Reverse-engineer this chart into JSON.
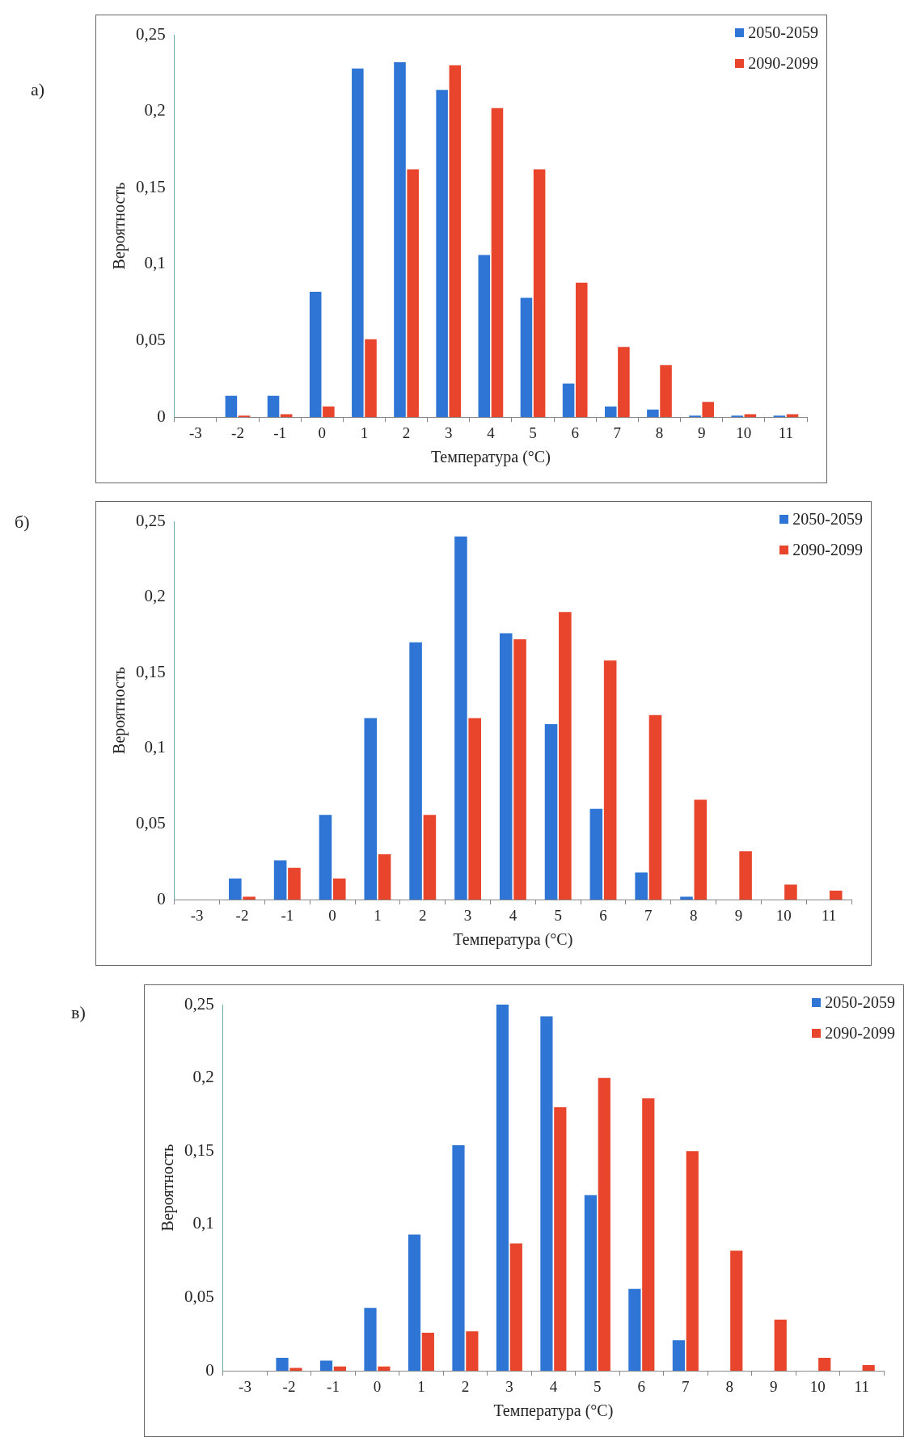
{
  "chart_data": [
    {
      "type": "bar",
      "title": "а)",
      "xlabel": "Температура (°C)",
      "ylabel": "Вероятность",
      "categories": [
        "-3",
        "-2",
        "-1",
        "0",
        "1",
        "2",
        "3",
        "4",
        "5",
        "6",
        "7",
        "8",
        "9",
        "10",
        "11"
      ],
      "series": [
        {
          "name": "2050-2059",
          "color": "#2e75d6",
          "values": [
            0,
            0.014,
            0.014,
            0.082,
            0.228,
            0.232,
            0.214,
            0.106,
            0.078,
            0.022,
            0.007,
            0.005,
            0.001,
            0.001,
            0.001
          ]
        },
        {
          "name": "2090-2099",
          "color": "#e8452c",
          "values": [
            0,
            0.001,
            0.002,
            0.007,
            0.051,
            0.162,
            0.23,
            0.202,
            0.162,
            0.088,
            0.046,
            0.034,
            0.01,
            0.002,
            0.002
          ]
        }
      ],
      "ylim": [
        0,
        0.25
      ],
      "yticks": [
        {
          "value": 0,
          "label": "0"
        },
        {
          "value": 0.05,
          "label": "0,05"
        },
        {
          "value": 0.1,
          "label": "0,1"
        },
        {
          "value": 0.15,
          "label": "0,15"
        },
        {
          "value": 0.2,
          "label": "0,2"
        },
        {
          "value": 0.25,
          "label": "0,25"
        }
      ],
      "grid": false,
      "legend": "top right"
    },
    {
      "type": "bar",
      "title": "б)",
      "xlabel": "Температура (°C)",
      "ylabel": "Вероятность",
      "categories": [
        "-3",
        "-2",
        "-1",
        "0",
        "1",
        "2",
        "3",
        "4",
        "5",
        "6",
        "7",
        "8",
        "9",
        "10",
        "11"
      ],
      "series": [
        {
          "name": "2050-2059",
          "color": "#2e75d6",
          "values": [
            0,
            0.014,
            0.026,
            0.056,
            0.12,
            0.17,
            0.24,
            0.176,
            0.116,
            0.06,
            0.018,
            0.002,
            0,
            0,
            0
          ]
        },
        {
          "name": "2090-2099",
          "color": "#e8452c",
          "values": [
            0,
            0.002,
            0.021,
            0.014,
            0.03,
            0.056,
            0.12,
            0.172,
            0.19,
            0.158,
            0.122,
            0.066,
            0.032,
            0.01,
            0.006
          ]
        }
      ],
      "ylim": [
        0,
        0.25
      ],
      "yticks": [
        {
          "value": 0,
          "label": "0"
        },
        {
          "value": 0.05,
          "label": "0,05"
        },
        {
          "value": 0.1,
          "label": "0,1"
        },
        {
          "value": 0.15,
          "label": "0,15"
        },
        {
          "value": 0.2,
          "label": "0,2"
        },
        {
          "value": 0.25,
          "label": "0,25"
        }
      ],
      "grid": false,
      "legend": "top right"
    },
    {
      "type": "bar",
      "title": "в)",
      "xlabel": "Температура (°C)",
      "ylabel": "Вероятность",
      "categories": [
        "-3",
        "-2",
        "-1",
        "0",
        "1",
        "2",
        "3",
        "4",
        "5",
        "6",
        "7",
        "8",
        "9",
        "10",
        "11"
      ],
      "series": [
        {
          "name": "2050-2059",
          "color": "#2e75d6",
          "values": [
            0,
            0.009,
            0.007,
            0.043,
            0.093,
            0.154,
            0.25,
            0.242,
            0.12,
            0.056,
            0.021,
            0,
            0,
            0,
            0
          ]
        },
        {
          "name": "2090-2099",
          "color": "#e8452c",
          "values": [
            0,
            0.002,
            0.003,
            0.003,
            0.026,
            0.027,
            0.087,
            0.18,
            0.2,
            0.186,
            0.15,
            0.082,
            0.035,
            0.009,
            0.004
          ]
        }
      ],
      "ylim": [
        0,
        0.25
      ],
      "yticks": [
        {
          "value": 0,
          "label": "0"
        },
        {
          "value": 0.05,
          "label": "0,05"
        },
        {
          "value": 0.1,
          "label": "0,1"
        },
        {
          "value": 0.15,
          "label": "0,15"
        },
        {
          "value": 0.2,
          "label": "0,2"
        },
        {
          "value": 0.25,
          "label": "0,25"
        }
      ],
      "grid": false,
      "legend": "top right"
    }
  ]
}
